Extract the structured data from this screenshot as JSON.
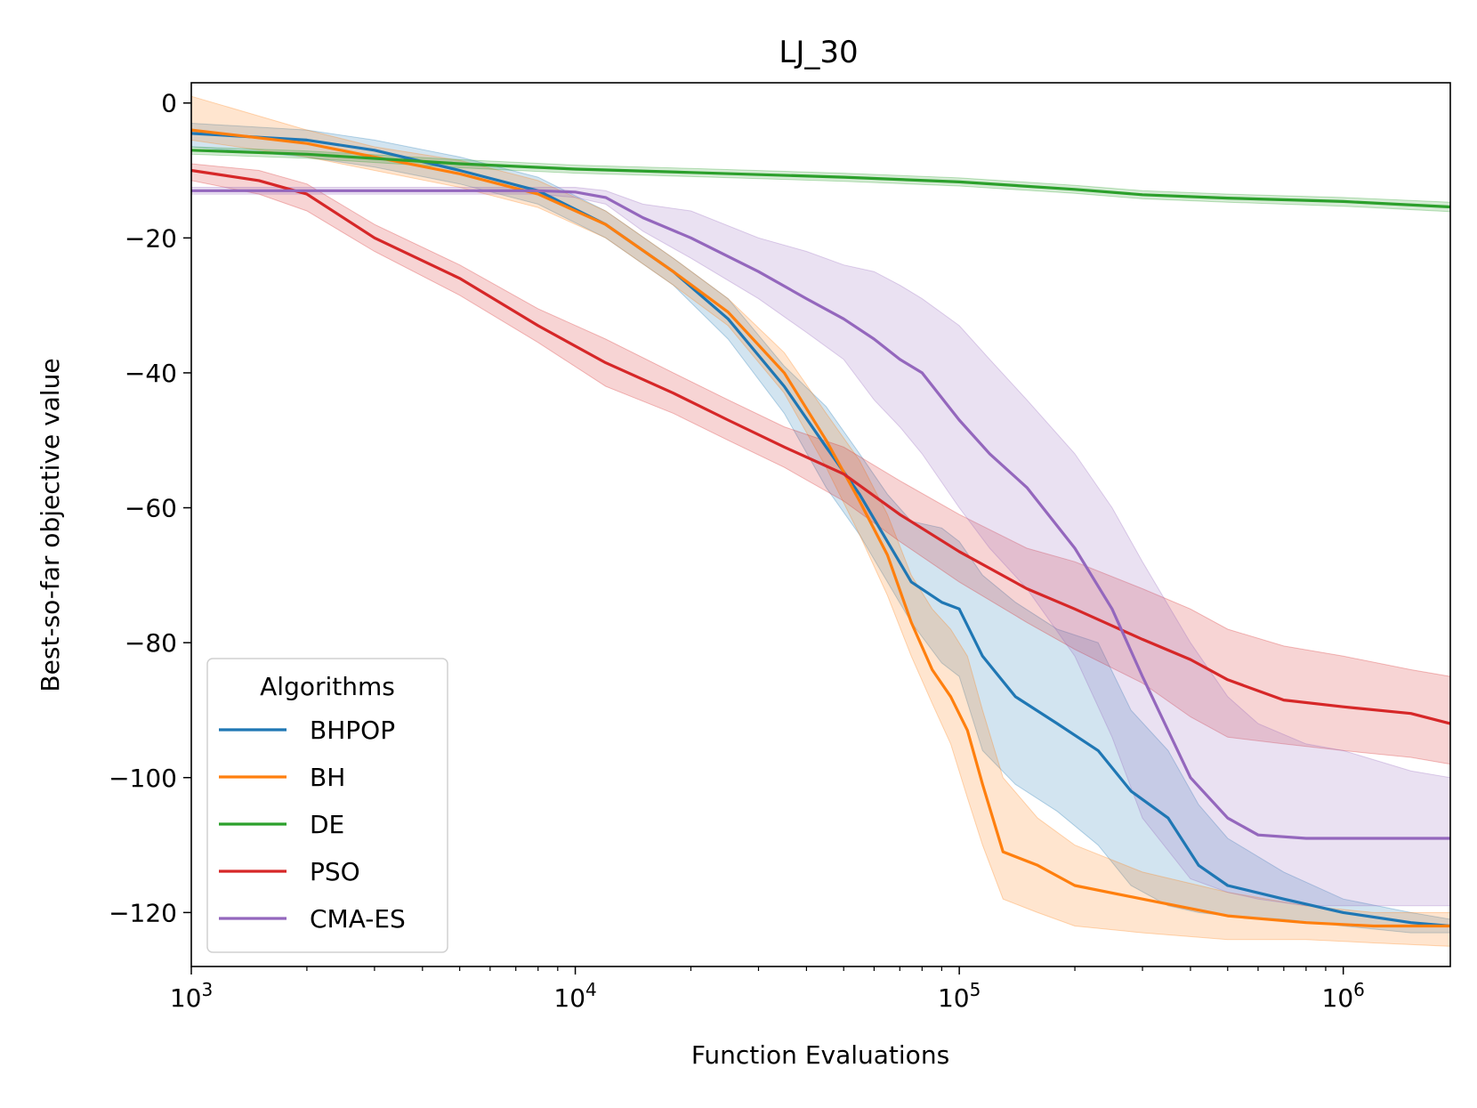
{
  "colors": {
    "BHPOP": "#1f77b4",
    "BH": "#ff7f0e",
    "DE": "#2ca02c",
    "PSO": "#d62728",
    "CMA-ES": "#9467bd"
  },
  "chart_data": {
    "type": "line",
    "title": "LJ_30",
    "xlabel": "Function Evaluations",
    "ylabel": "Best-so-far objective value",
    "x_scale": "log",
    "xlim": [
      1000,
      1900000
    ],
    "ylim": [
      -128,
      3
    ],
    "x_ticks": [
      {
        "value": 1000,
        "base": "10",
        "exp": "3"
      },
      {
        "value": 10000,
        "base": "10",
        "exp": "4"
      },
      {
        "value": 100000,
        "base": "10",
        "exp": "5"
      },
      {
        "value": 1000000,
        "base": "10",
        "exp": "6"
      }
    ],
    "y_ticks": [
      {
        "value": 0,
        "label": "0"
      },
      {
        "value": -20,
        "label": "−20"
      },
      {
        "value": -40,
        "label": "−40"
      },
      {
        "value": -60,
        "label": "−60"
      },
      {
        "value": -80,
        "label": "−80"
      },
      {
        "value": -100,
        "label": "−100"
      },
      {
        "value": -120,
        "label": "−120"
      }
    ],
    "grid": false,
    "legend": {
      "title": "Algorithms",
      "position": "lower-left"
    },
    "series": [
      {
        "name": "BHPOP",
        "x": [
          1000,
          2000,
          3000,
          5000,
          8000,
          12000,
          18000,
          25000,
          35000,
          45000,
          55000,
          65000,
          75000,
          90000,
          100000,
          115000,
          140000,
          180000,
          230000,
          280000,
          350000,
          420000,
          500000,
          700000,
          1000000,
          1500000,
          1900000
        ],
        "y": [
          -4.5,
          -5.5,
          -7,
          -10,
          -13,
          -18,
          -25,
          -32,
          -42,
          -51,
          -58,
          -65,
          -71,
          -74,
          -75,
          -82,
          -88,
          -92,
          -96,
          -102,
          -106,
          -113,
          -116,
          -118,
          -120,
          -121.5,
          -122
        ],
        "lower": [
          -6.5,
          -8,
          -9.5,
          -12,
          -15,
          -20,
          -27,
          -35,
          -46,
          -57,
          -64,
          -71,
          -77,
          -83,
          -85,
          -96,
          -101,
          -105,
          -110,
          -116,
          -119,
          -120,
          -120.5,
          -121,
          -122,
          -123,
          -123
        ],
        "upper": [
          -3,
          -4,
          -5.5,
          -8,
          -11,
          -16,
          -23,
          -29,
          -39,
          -45,
          -52,
          -58,
          -62,
          -63,
          -65,
          -70,
          -74,
          -78,
          -80,
          -90,
          -96,
          -104,
          -109,
          -114,
          -118,
          -120,
          -121
        ]
      },
      {
        "name": "BH",
        "x": [
          1000,
          2000,
          3000,
          5000,
          8000,
          12000,
          18000,
          25000,
          35000,
          45000,
          55000,
          65000,
          75000,
          85000,
          95000,
          105000,
          115000,
          130000,
          160000,
          200000,
          300000,
          500000,
          800000,
          1200000,
          1900000
        ],
        "y": [
          -4,
          -6,
          -8,
          -10.5,
          -13.5,
          -18,
          -25,
          -31,
          -40,
          -50,
          -59,
          -67,
          -77,
          -84,
          -88,
          -93,
          -101,
          -111,
          -113,
          -116,
          -118,
          -120.5,
          -121.5,
          -122,
          -122
        ],
        "lower": [
          -5.5,
          -8,
          -10,
          -12.5,
          -15.5,
          -20,
          -27,
          -33,
          -43,
          -54,
          -64,
          -73,
          -82,
          -89,
          -95,
          -103,
          -110,
          -118,
          -120,
          -122,
          -123,
          -124,
          -124,
          -124.5,
          -125
        ],
        "upper": [
          1,
          -4,
          -6.5,
          -8.5,
          -11.5,
          -16,
          -23,
          -29,
          -37,
          -46,
          -53,
          -61,
          -70,
          -75,
          -78,
          -82,
          -90,
          -100,
          -106,
          -110,
          -114,
          -117,
          -119,
          -120,
          -120
        ]
      },
      {
        "name": "DE",
        "x": [
          1000,
          2000,
          5000,
          10000,
          20000,
          50000,
          100000,
          200000,
          300000,
          500000,
          1000000,
          1900000
        ],
        "y": [
          -7,
          -7.6,
          -9,
          -9.8,
          -10.3,
          -11,
          -11.7,
          -12.8,
          -13.6,
          -14.1,
          -14.6,
          -15.4
        ],
        "lower": [
          -7.6,
          -8.2,
          -9.6,
          -10.4,
          -10.9,
          -11.6,
          -12.3,
          -13.4,
          -14.2,
          -14.7,
          -15.3,
          -16.1
        ],
        "upper": [
          -6.5,
          -7.1,
          -8.4,
          -9.2,
          -9.7,
          -10.4,
          -11.1,
          -12.2,
          -13,
          -13.5,
          -14,
          -14.7
        ]
      },
      {
        "name": "PSO",
        "x": [
          1000,
          1500,
          2000,
          3000,
          5000,
          8000,
          12000,
          18000,
          25000,
          35000,
          50000,
          70000,
          100000,
          150000,
          200000,
          300000,
          400000,
          500000,
          700000,
          1000000,
          1500000,
          1900000
        ],
        "y": [
          -10,
          -11.5,
          -13.5,
          -20,
          -26,
          -33,
          -38.5,
          -43,
          -47,
          -51,
          -55,
          -61,
          -66.5,
          -72,
          -75,
          -79.5,
          -82.5,
          -85.5,
          -88.5,
          -89.5,
          -90.5,
          -92
        ],
        "lower": [
          -11.5,
          -13.5,
          -16,
          -22,
          -28.5,
          -35.5,
          -42,
          -46,
          -50,
          -54,
          -59,
          -65,
          -71,
          -77,
          -81,
          -86,
          -91,
          -94,
          -95,
          -96,
          -97,
          -98
        ],
        "upper": [
          -9,
          -10,
          -12,
          -18,
          -24,
          -30.5,
          -35,
          -40,
          -44,
          -48,
          -51,
          -56,
          -61,
          -66,
          -68,
          -72,
          -75,
          -78,
          -80.5,
          -82,
          -84,
          -85
        ]
      },
      {
        "name": "CMA-ES",
        "x": [
          1000,
          8000,
          10000,
          12000,
          15000,
          20000,
          30000,
          40000,
          50000,
          60000,
          70000,
          80000,
          100000,
          120000,
          150000,
          200000,
          250000,
          300000,
          400000,
          500000,
          600000,
          800000,
          1000000,
          1500000,
          1900000
        ],
        "y": [
          -13,
          -13,
          -13.2,
          -14,
          -17,
          -20,
          -25,
          -29,
          -32,
          -35,
          -38,
          -40,
          -47,
          -52,
          -57,
          -66,
          -75,
          -85,
          -100,
          -106,
          -108.5,
          -109,
          -109,
          -109,
          -109
        ],
        "lower": [
          -13.5,
          -13.5,
          -14,
          -15,
          -19,
          -23,
          -29,
          -34,
          -38,
          -44,
          -48,
          -52,
          -60,
          -66,
          -72,
          -82,
          -94,
          -106,
          -115,
          -117,
          -118,
          -119,
          -119,
          -119,
          -119
        ],
        "upper": [
          -12.5,
          -12.5,
          -12.5,
          -13,
          -15,
          -16,
          -20,
          -22,
          -24,
          -25,
          -27,
          -29,
          -33,
          -38,
          -44,
          -52,
          -60,
          -68,
          -80,
          -88,
          -92,
          -95,
          -96,
          -99,
          -100
        ]
      }
    ]
  }
}
